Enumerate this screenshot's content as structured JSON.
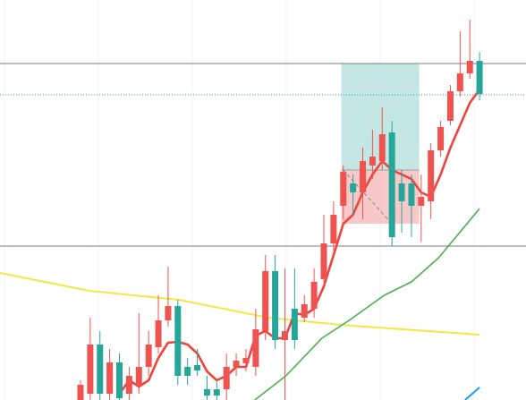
{
  "chart_data": {
    "type": "candlestick",
    "xlim": [
      -8.27,
      45.77
    ],
    "ylim": [
      0,
      447
    ],
    "up_color": "#ef5350",
    "down_color": "#26a69a",
    "open": [
      0,
      7,
      62,
      7,
      42,
      7,
      17,
      37,
      59,
      89,
      105,
      37,
      39,
      12,
      12,
      12,
      37,
      41,
      37,
      77,
      144,
      67,
      102,
      92,
      102,
      135,
      175,
      217,
      242,
      232,
      262,
      267,
      299,
      242,
      242,
      217,
      222,
      279,
      312,
      345,
      365,
      379
    ],
    "high": [
      22,
      92,
      77,
      57,
      52,
      37,
      97,
      77,
      117,
      149,
      112,
      47,
      57,
      27,
      22,
      52,
      52,
      57,
      102,
      162,
      162,
      147,
      147,
      117,
      147,
      207,
      222,
      262,
      252,
      282,
      302,
      327,
      312,
      257,
      252,
      252,
      287,
      312,
      352,
      412,
      425,
      389
    ],
    "low": [
      0,
      0,
      0,
      0,
      0,
      0,
      7,
      27,
      52,
      82,
      17,
      17,
      27,
      0,
      0,
      0,
      27,
      32,
      27,
      67,
      57,
      0,
      57,
      87,
      92,
      127,
      167,
      202,
      207,
      202,
      247,
      257,
      172,
      187,
      182,
      177,
      202,
      272,
      307,
      339,
      359,
      335
    ],
    "close": [
      17,
      62,
      7,
      42,
      2,
      27,
      37,
      62,
      89,
      105,
      27,
      27,
      33,
      5,
      5,
      37,
      44,
      47,
      79,
      144,
      67,
      77,
      67,
      107,
      132,
      175,
      207,
      255,
      232,
      267,
      272,
      297,
      182,
      222,
      217,
      227,
      279,
      305,
      345,
      365,
      379,
      342
    ],
    "lines": [
      {
        "color": "#f5e642",
        "width": 2,
        "x": [
          -8.27,
          -3.68,
          0.92,
          10.11,
          19.3,
          26.65,
          33.1,
          41
        ],
        "values": [
          142,
          132,
          122,
          112,
          92,
          84,
          79,
          73
        ]
      },
      {
        "color": "#4caf50",
        "width": 1.6,
        "x": [
          17.9,
          21.1,
          24.8,
          27.6,
          31.2,
          34,
          36.8,
          41
        ],
        "values": [
          0,
          27,
          69,
          89,
          117,
          132,
          159,
          214
        ]
      },
      {
        "color": "#2196f3",
        "width": 2,
        "x": [
          39.5,
          41
        ],
        "values": [
          0,
          14
        ]
      },
      {
        "color": "#f0433a",
        "width": 2.6,
        "x": [
          4,
          5,
          6,
          7,
          8,
          9,
          10,
          11,
          12,
          13,
          14,
          15,
          16,
          17,
          18,
          19,
          20,
          21,
          22,
          23,
          24,
          25,
          26,
          27,
          28,
          29,
          30,
          31,
          32,
          33,
          34,
          35,
          36,
          37,
          38,
          39,
          40,
          41
        ],
        "values": [
          7,
          22,
          15,
          22,
          47,
          64,
          65,
          62,
          52,
          32,
          22,
          27,
          37,
          37,
          72,
          77,
          69,
          69,
          97,
          95,
          102,
          127,
          162,
          197,
          207,
          232,
          252,
          267,
          257,
          252,
          247,
          232,
          227,
          252,
          282,
          307,
          332,
          347
        ]
      }
    ],
    "hlines": [
      {
        "value": 376,
        "color": "#787b86",
        "style": "solid"
      },
      {
        "value": 172,
        "color": "#787b86",
        "style": "solid"
      },
      {
        "value": 341,
        "color": "#26a69a",
        "style": "dotted"
      }
    ],
    "position": {
      "start": 26.8,
      "end": 34.8,
      "target": 376,
      "entry": 257,
      "stop": 197,
      "target_color": "#b2dfdb",
      "stop_color": "#f8bcbc"
    }
  }
}
